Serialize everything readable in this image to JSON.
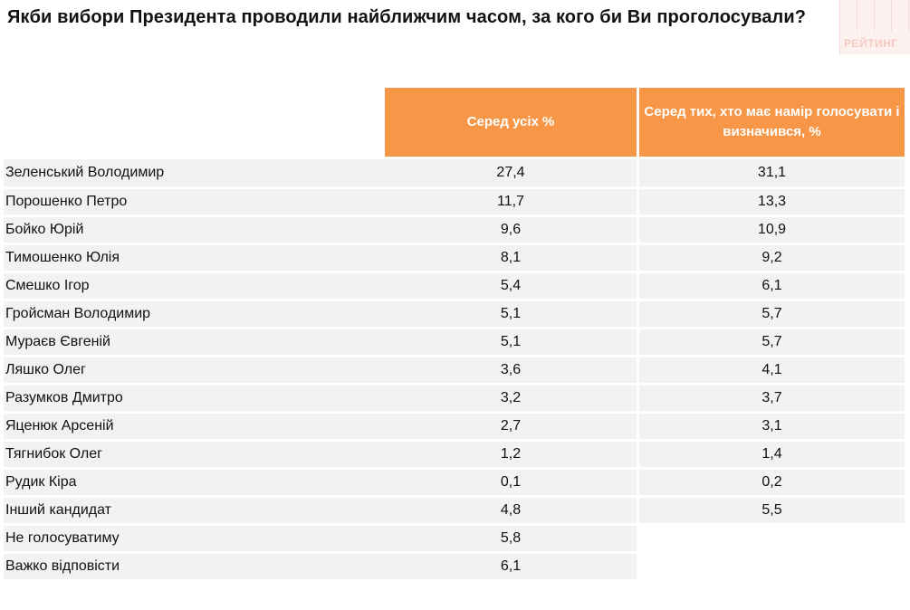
{
  "title": "Якби вибори Президента проводили найближчим часом, за кого би Ви проголосували?",
  "logo_text": "РЕЙТИНГ",
  "columns": [
    "Серед усіх %",
    "Серед тих, хто має намір голосувати і визначився, %"
  ],
  "colors": {
    "header_bg": "#f79646",
    "row_bg": "#f2f2f2"
  },
  "rows": [
    {
      "name": "Зеленський Володимир",
      "all": "27,4",
      "decided": "31,1"
    },
    {
      "name": "Порошенко Петро",
      "all": "11,7",
      "decided": "13,3"
    },
    {
      "name": "Бойко Юрій",
      "all": "9,6",
      "decided": "10,9"
    },
    {
      "name": "Тимошенко Юлія",
      "all": "8,1",
      "decided": "9,2"
    },
    {
      "name": "Смешко Ігор",
      "all": "5,4",
      "decided": "6,1"
    },
    {
      "name": "Гройсман Володимир",
      "all": "5,1",
      "decided": "5,7"
    },
    {
      "name": "Мураєв Євгеній",
      "all": "5,1",
      "decided": "5,7"
    },
    {
      "name": "Ляшко Олег",
      "all": "3,6",
      "decided": "4,1"
    },
    {
      "name": "Разумков Дмитро",
      "all": "3,2",
      "decided": "3,7"
    },
    {
      "name": "Яценюк  Арсеній",
      "all": "2,7",
      "decided": "3,1"
    },
    {
      "name": "Тягнибок Олег",
      "all": "1,2",
      "decided": "1,4"
    },
    {
      "name": "Рудик Кіра",
      "all": "0,1",
      "decided": "0,2"
    },
    {
      "name": "Інший кандидат",
      "all": "4,8",
      "decided": "5,5"
    },
    {
      "name": "Не голосуватиму",
      "all": "5,8",
      "decided": ""
    },
    {
      "name": "Важко відповісти",
      "all": "6,1",
      "decided": ""
    }
  ]
}
